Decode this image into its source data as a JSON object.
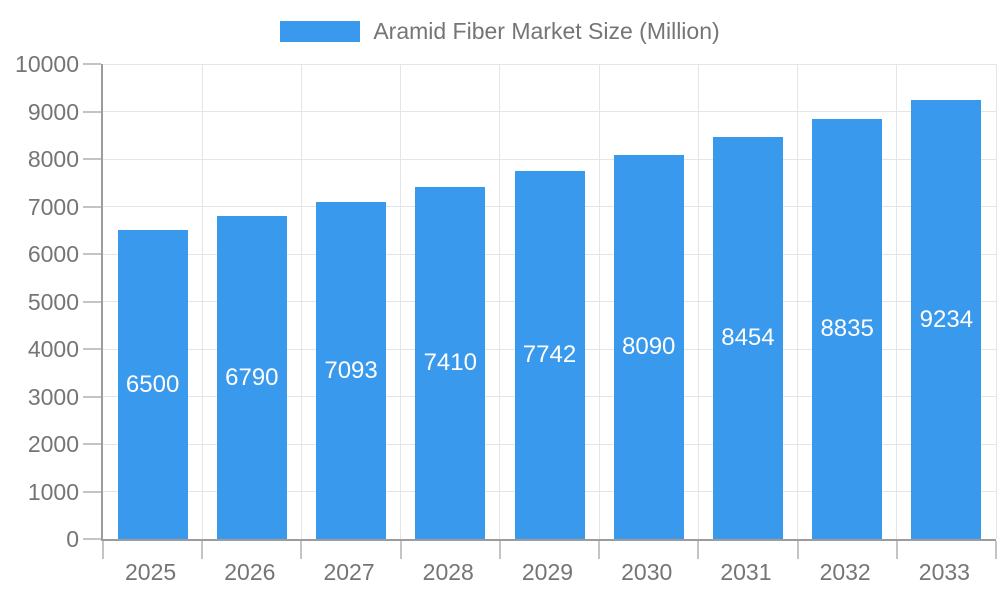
{
  "chart_data": {
    "type": "bar",
    "title": "Aramid Fiber Market Size (Million)",
    "legend": [
      "Aramid Fiber Market Size (Million)"
    ],
    "legend_position": "top-center",
    "categories": [
      "2025",
      "2026",
      "2027",
      "2028",
      "2029",
      "2030",
      "2031",
      "2032",
      "2033"
    ],
    "values": [
      6500,
      6790,
      7093,
      7410,
      7742,
      8090,
      8454,
      8835,
      9234
    ],
    "value_label_position": "inside-center",
    "xlabel": "",
    "ylabel": "",
    "ylim": [
      0,
      10000
    ],
    "ytick_step": 1000,
    "ytick_labels": [
      "0",
      "1000",
      "2000",
      "3000",
      "4000",
      "5000",
      "6000",
      "7000",
      "8000",
      "9000",
      "10000"
    ],
    "grid": true
  },
  "colors": {
    "bar": "#3999EC",
    "bar_value_label": "#FFFFFF",
    "axis_line": "#9C9C9C",
    "grid_line": "#E5E5E5",
    "tick_line": "#C4C4C4",
    "text": "#757575",
    "background": "#FFFFFF"
  }
}
